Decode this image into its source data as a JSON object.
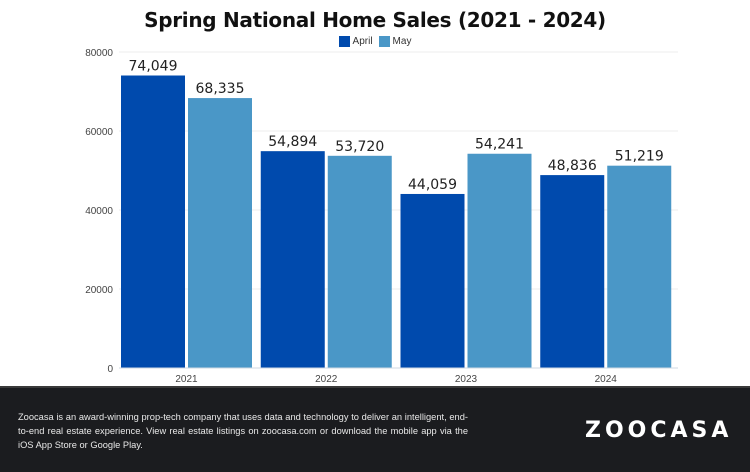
{
  "chart_data": {
    "type": "bar",
    "title": "Spring National Home Sales (2021 - 2024)",
    "xlabel": "",
    "ylabel": "",
    "ylim": [
      0,
      80000
    ],
    "yticks": [
      "0",
      "20000",
      "40000",
      "60000",
      "80000"
    ],
    "ytick_values": [
      0,
      20000,
      40000,
      60000,
      80000
    ],
    "grid": true,
    "legend_position": "top-center",
    "categories": [
      "2021",
      "2022",
      "2023",
      "2024"
    ],
    "series": [
      {
        "name": "April",
        "color": "#004aad",
        "values": [
          74049,
          54894,
          44059,
          48836
        ],
        "labels": [
          "74,049",
          "54,894",
          "44,059",
          "48,836"
        ]
      },
      {
        "name": "May",
        "color": "#4a97c7",
        "values": [
          68335,
          53720,
          54241,
          51219
        ],
        "labels": [
          "68,335",
          "53,720",
          "54,241",
          "51,219"
        ]
      }
    ]
  },
  "footer": {
    "description": "Zoocasa is an award-winning prop-tech company that uses data and technology to deliver an intelligent, end-to-end real estate experience. View real estate listings on zoocasa.com or download the mobile app via the iOS App Store or Google Play.",
    "logo": "ZOOCASA"
  },
  "colors": {
    "footer_bg": "#1b1c1f"
  }
}
